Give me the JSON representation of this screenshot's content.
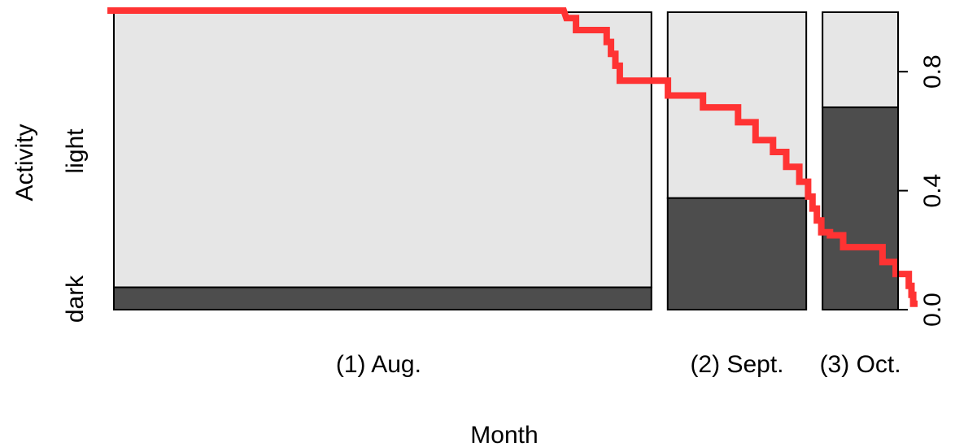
{
  "chart_data": {
    "type": "spineplot",
    "xlabel": "Month",
    "ylabel": "Activity",
    "categories": [
      "(1) Aug.",
      "(2) Sept.",
      "(3) Oct."
    ],
    "category_widths": [
      0.605,
      0.156,
      0.085
    ],
    "y_levels": [
      "dark",
      "light"
    ],
    "dark_proportions": [
      0.075,
      0.375,
      0.68
    ],
    "colors": {
      "dark": "#4d4d4d",
      "light": "#e6e6e6",
      "line": "#ff3333"
    },
    "right_axis": {
      "ticks": [
        0.0,
        0.4,
        0.8
      ],
      "labels": [
        "0.0",
        "0.4",
        "0.8"
      ],
      "ylim": [
        0,
        1
      ]
    },
    "step_line": {
      "name": "",
      "x": [
        0.0,
        0.521,
        0.524,
        0.535,
        0.535,
        0.57,
        0.57,
        0.575,
        0.575,
        0.58,
        0.58,
        0.585,
        0.585,
        0.64,
        0.64,
        0.68,
        0.68,
        0.72,
        0.72,
        0.74,
        0.74,
        0.76,
        0.76,
        0.775,
        0.775,
        0.79,
        0.79,
        0.8,
        0.8,
        0.805,
        0.805,
        0.81,
        0.81,
        0.815,
        0.815,
        0.825,
        0.825,
        0.84,
        0.84,
        0.885,
        0.885,
        0.9,
        0.9,
        0.915,
        0.915,
        0.918,
        0.918,
        0.92,
        0.92,
        0.925
      ],
      "y": [
        1.0,
        1.0,
        0.98,
        0.98,
        0.94,
        0.94,
        0.9,
        0.9,
        0.86,
        0.86,
        0.82,
        0.82,
        0.77,
        0.77,
        0.72,
        0.72,
        0.68,
        0.68,
        0.63,
        0.63,
        0.57,
        0.57,
        0.53,
        0.53,
        0.48,
        0.48,
        0.43,
        0.43,
        0.38,
        0.38,
        0.34,
        0.34,
        0.3,
        0.3,
        0.26,
        0.26,
        0.25,
        0.25,
        0.21,
        0.21,
        0.16,
        0.16,
        0.12,
        0.12,
        0.08,
        0.08,
        0.05,
        0.05,
        0.02,
        0.02
      ]
    }
  }
}
